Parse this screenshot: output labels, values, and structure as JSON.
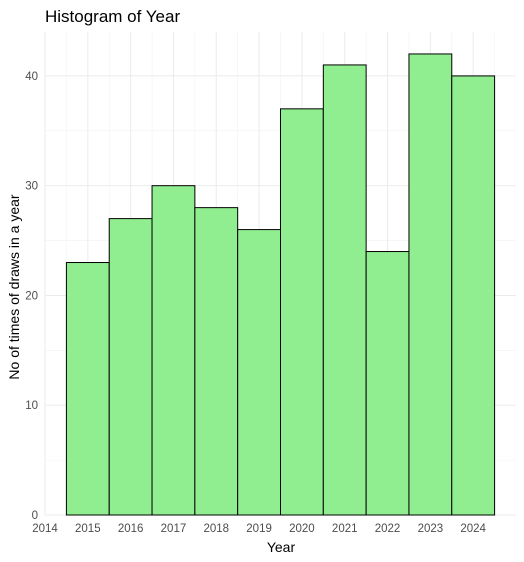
{
  "chart_data": {
    "type": "bar",
    "title": "Histogram of Year",
    "xlabel": "Year",
    "ylabel": "No of times of draws in a year",
    "x_ticks": [
      2014,
      2015,
      2016,
      2017,
      2018,
      2019,
      2020,
      2021,
      2022,
      2023,
      2024
    ],
    "y_ticks": [
      0,
      10,
      20,
      30,
      40
    ],
    "xlim": [
      2014,
      2025
    ],
    "ylim": [
      0,
      44
    ],
    "categories": [
      "2015",
      "2016",
      "2017",
      "2018",
      "2019",
      "2020",
      "2021",
      "2022",
      "2023",
      "2024"
    ],
    "values": [
      23,
      27,
      30,
      28,
      26,
      37,
      41,
      24,
      42,
      40
    ],
    "bar_fill": "#90ee90",
    "bar_stroke": "#000000",
    "grid": true,
    "legend": "none"
  }
}
